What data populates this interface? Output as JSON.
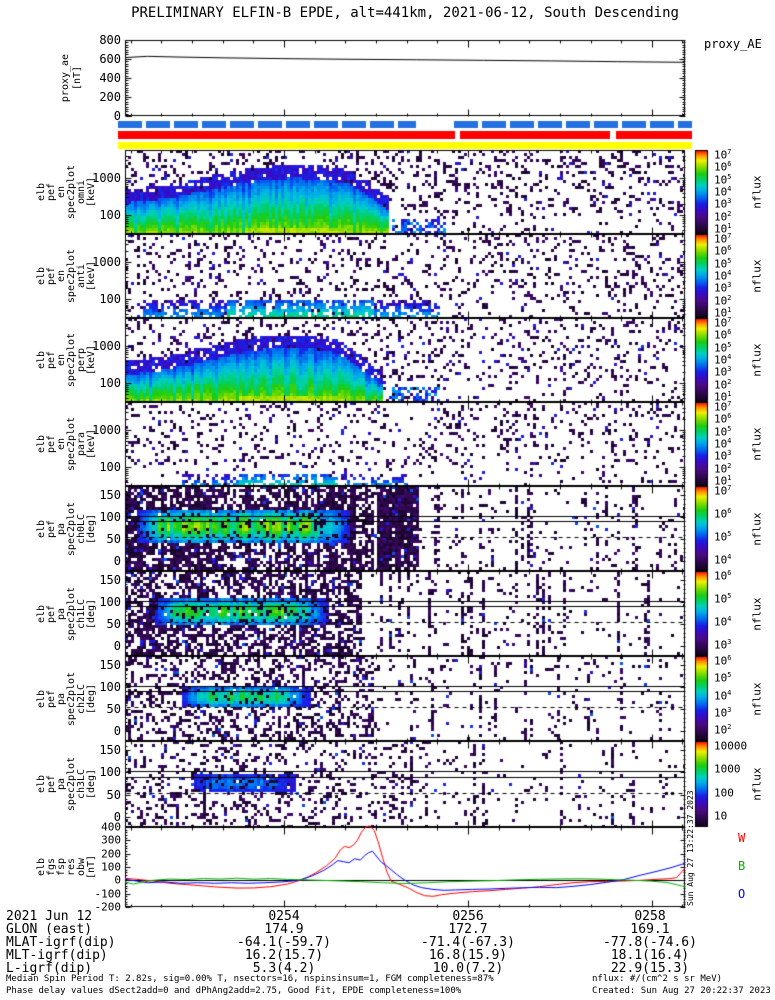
{
  "title": "PRELIMINARY ELFIN-B EPDE, alt=441km, 2021-06-12, South Descending",
  "created_stamp_vertical": "Sun Aug 27 13:22:37 2023",
  "footer": {
    "left_lines": [
      "Median Spin Period T: 2.82s, sig=0.00% T, nsectors=16, nspinsinsum=1, FGM completeness=87%",
      "Phase delay values dSect2add=0 and dPhAng2add=2.75, Good Fit, EPDE completeness=100%"
    ],
    "right_lines": [
      "nflux: #/(cm^2 s sr MeV)",
      "Created: Sun Aug 27 20:22:37 2023"
    ]
  },
  "annotations": {
    "rows": [
      {
        "label": "2021 Jun 12",
        "values": [
          "0254",
          "0256",
          "0258"
        ]
      },
      {
        "label": "GLON (east)",
        "values": [
          "174.9",
          "172.7",
          "169.1"
        ]
      },
      {
        "label": "MLAT-igrf(dip)",
        "values": [
          "-64.1(-59.7)",
          "-71.4(-67.3)",
          "-77.8(-74.6)"
        ]
      },
      {
        "label": "MLT-igrf(dip)",
        "values": [
          "16.2(15.7)",
          "16.8(15.9)",
          "18.1(16.4)"
        ]
      },
      {
        "label": "L-igrf(dip)",
        "values": [
          "5.3(4.2)",
          "10.0(7.2)",
          "22.9(15.3)"
        ]
      }
    ]
  },
  "chart_data": {
    "type": "multi-panel-spectrogram",
    "colorbar_label": "nflux",
    "time_axis": {
      "major_labels": [
        "0254",
        "0256",
        "0258"
      ]
    },
    "proxy_panel": {
      "left_label_lines": [
        "proxy_ae",
        "[nT]"
      ],
      "right_label": "proxy_AE",
      "yticks": [
        0,
        200,
        400,
        600,
        800
      ],
      "ylim": [
        0,
        800
      ],
      "line_points": [
        [
          0,
          615
        ],
        [
          0.04,
          628
        ],
        [
          0.1,
          620
        ],
        [
          0.18,
          612
        ],
        [
          0.28,
          604
        ],
        [
          0.4,
          597
        ],
        [
          0.52,
          592
        ],
        [
          0.64,
          586
        ],
        [
          0.76,
          580
        ],
        [
          0.88,
          572
        ],
        [
          1,
          565
        ]
      ]
    },
    "availability_strips": [
      {
        "name": "blue-strip",
        "color": "#2470e0",
        "style": "dashed"
      },
      {
        "name": "red-strip",
        "color": "#ff0000",
        "style": "solid"
      },
      {
        "name": "yellow-strip",
        "color": "#ffff00",
        "style": "solid"
      }
    ],
    "energy_panels": [
      {
        "name": "omni",
        "label_lines": [
          "elb",
          "pef",
          "en",
          "spec2plot",
          "omni",
          "[keV]"
        ],
        "ytick_labels": [
          "1000",
          "100"
        ],
        "colorbar_ticks": [
          "10^7",
          "10^6",
          "10^5",
          "10^4",
          "10^3",
          "10^2",
          "10^1"
        ],
        "seed": 11,
        "features": {
          "noise": 0.2,
          "blob": {
            "base": 0.66,
            "amp": 0.34,
            "cx": 0.3,
            "sx": 0.15,
            "xEnd": 0.47,
            "bendX": 0.4
          },
          "tail": {
            "x0": 0.475,
            "x1": 0.57,
            "top": 0.8,
            "p": 0.55
          }
        }
      },
      {
        "name": "anti",
        "label_lines": [
          "elb",
          "pef",
          "en",
          "spec2plot",
          "anti",
          "[keV]"
        ],
        "ytick_labels": [
          "1000",
          "100"
        ],
        "colorbar_ticks": [
          "10^7",
          "10^6",
          "10^5",
          "10^4",
          "10^3",
          "10^2",
          "10^1"
        ],
        "seed": 22,
        "features": {
          "noise": 0.17,
          "band": {
            "x0": 0.03,
            "x1": 0.56,
            "top": 0.76,
            "p": 0.55,
            "cx0": 0.18,
            "cx1": 0.44
          }
        }
      },
      {
        "name": "perp",
        "label_lines": [
          "elb",
          "pef",
          "en",
          "spec2plot",
          "perp",
          "[keV]"
        ],
        "ytick_labels": [
          "1000",
          "100"
        ],
        "colorbar_ticks": [
          "10^7",
          "10^6",
          "10^5",
          "10^4",
          "10^3",
          "10^2",
          "10^1"
        ],
        "seed": 33,
        "features": {
          "noise": 0.19,
          "blob": {
            "base": 0.7,
            "amp": 0.36,
            "cx": 0.29,
            "sx": 0.14,
            "xEnd": 0.46,
            "bendX": 0.38
          },
          "tail": {
            "x0": 0.47,
            "x1": 0.56,
            "top": 0.82,
            "p": 0.5
          }
        }
      },
      {
        "name": "para",
        "label_lines": [
          "elb",
          "pef",
          "en",
          "spec2plot",
          "para",
          "[keV]"
        ],
        "ytick_labels": [
          "1000",
          "100"
        ],
        "colorbar_ticks": [
          "10^7",
          "10^6",
          "10^5",
          "10^4",
          "10^3",
          "10^2",
          "10^1"
        ],
        "seed": 44,
        "features": {
          "noise": 0.15,
          "band": {
            "x0": 0.1,
            "x1": 0.5,
            "top": 0.84,
            "p": 0.4,
            "cx0": 0.2,
            "cx1": 0.38
          }
        }
      }
    ],
    "pitch_panels": [
      {
        "name": "ch0LC",
        "label_lines": [
          "elb",
          "pef",
          "pa",
          "spec2plot",
          "ch0LC",
          "[deg]"
        ],
        "yticks": [
          150,
          100,
          50,
          0
        ],
        "colorbar_ticks": [
          "10^7",
          "10^6",
          "10^5",
          "10^4"
        ],
        "seed": 55,
        "features": {
          "darkEnd": 0.44,
          "darkD": 0.85,
          "spCol": 0.15,
          "extra": [
            0.45,
            0.52
          ],
          "bandX": [
            0.02,
            0.4
          ],
          "bandC": 97,
          "bandS": 24,
          "bandA": 0.46
        },
        "lines": {
          "solid_deg": [
            103,
            90
          ],
          "dashed_deg": [
            55
          ]
        }
      },
      {
        "name": "ch1LC",
        "label_lines": [
          "elb",
          "pef",
          "pa",
          "spec2plot",
          "ch1LC",
          "[deg]"
        ],
        "yticks": [
          150,
          100,
          50,
          0
        ],
        "colorbar_ticks": [
          "10^6",
          "10^5",
          "10^4",
          "10^3"
        ],
        "seed": 66,
        "features": {
          "darkEnd": 0.42,
          "darkD": 0.7,
          "spCol": 0.12,
          "bandX": [
            0.05,
            0.36
          ],
          "bandC": 96,
          "bandS": 19,
          "bandA": 0.42
        },
        "lines": {
          "solid_deg": [
            103,
            90
          ],
          "dashed_deg": [
            55
          ]
        }
      },
      {
        "name": "ch2LC",
        "label_lines": [
          "elb",
          "pef",
          "pa",
          "spec2plot",
          "ch2LC",
          "[deg]"
        ],
        "yticks": [
          150,
          100,
          50,
          0
        ],
        "colorbar_ticks": [
          "10^6",
          "10^5",
          "10^4",
          "10^3",
          "10^2"
        ],
        "seed": 77,
        "features": {
          "darkEnd": 0.44,
          "darkD": 0.45,
          "spCol": 0.1,
          "bandX": [
            0.1,
            0.33
          ],
          "bandC": 95,
          "bandS": 15,
          "bandA": 0.38
        },
        "lines": {
          "solid_deg": [
            103,
            90
          ],
          "dashed_deg": [
            55
          ]
        }
      },
      {
        "name": "ch3LC",
        "label_lines": [
          "elb",
          "pef",
          "pa",
          "spec2plot",
          "ch3LC",
          "[deg]"
        ],
        "yticks": [
          150,
          100,
          50,
          0
        ],
        "colorbar_ticks": [
          "10000",
          "1000",
          "100",
          "10"
        ],
        "seed": 88,
        "features": {
          "darkEnd": 0.5,
          "darkD": 0.3,
          "spCol": 0.08,
          "bandX": [
            0.12,
            0.3
          ],
          "bandC": 95,
          "bandS": 12,
          "bandA": 0.15
        },
        "lines": {
          "solid_deg": [
            103,
            90
          ],
          "dashed_deg": [
            55
          ]
        }
      }
    ],
    "bottom_panel": {
      "label_lines": [
        "elb",
        "fgs",
        "fsp",
        "res",
        "obw",
        "[nT]"
      ],
      "yticks": [
        400,
        300,
        200,
        100,
        0,
        -100,
        -200
      ],
      "ylim": [
        -200,
        400
      ],
      "legend": [
        {
          "label": "W",
          "color": "#ff0000"
        },
        {
          "label": "B",
          "color": "#00b400"
        },
        {
          "label": "O",
          "color": "#0000ff"
        }
      ],
      "series": [
        {
          "name": "W",
          "color": "#ff0000",
          "points": [
            [
              0,
              15
            ],
            [
              0.02,
              8
            ],
            [
              0.05,
              -5
            ],
            [
              0.08,
              -22
            ],
            [
              0.11,
              -32
            ],
            [
              0.14,
              -42
            ],
            [
              0.17,
              -52
            ],
            [
              0.2,
              -58
            ],
            [
              0.23,
              -57
            ],
            [
              0.26,
              -48
            ],
            [
              0.29,
              -28
            ],
            [
              0.32,
              10
            ],
            [
              0.34,
              55
            ],
            [
              0.36,
              110
            ],
            [
              0.375,
              165
            ],
            [
              0.385,
              230
            ],
            [
              0.392,
              255
            ],
            [
              0.4,
              245
            ],
            [
              0.408,
              265
            ],
            [
              0.415,
              300
            ],
            [
              0.422,
              360
            ],
            [
              0.43,
              400
            ],
            [
              0.437,
              408
            ],
            [
              0.445,
              375
            ],
            [
              0.452,
              290
            ],
            [
              0.46,
              170
            ],
            [
              0.468,
              60
            ],
            [
              0.475,
              -5
            ],
            [
              0.49,
              -30
            ],
            [
              0.505,
              -55
            ],
            [
              0.52,
              -90
            ],
            [
              0.535,
              -115
            ],
            [
              0.55,
              -120
            ],
            [
              0.565,
              -108
            ],
            [
              0.58,
              -100
            ],
            [
              0.6,
              -92
            ],
            [
              0.62,
              -85
            ],
            [
              0.65,
              -78
            ],
            [
              0.68,
              -68
            ],
            [
              0.71,
              -58
            ],
            [
              0.74,
              -48
            ],
            [
              0.77,
              -32
            ],
            [
              0.8,
              -18
            ],
            [
              0.83,
              -10
            ],
            [
              0.86,
              -8
            ],
            [
              0.89,
              -5
            ],
            [
              0.92,
              0
            ],
            [
              0.95,
              8
            ],
            [
              0.97,
              12
            ],
            [
              0.985,
              20
            ],
            [
              1,
              92
            ]
          ]
        },
        {
          "name": "O",
          "color": "#0000ff",
          "points": [
            [
              0,
              8
            ],
            [
              0.02,
              -5
            ],
            [
              0.04,
              -18
            ],
            [
              0.07,
              -12
            ],
            [
              0.1,
              -22
            ],
            [
              0.13,
              -18
            ],
            [
              0.16,
              -22
            ],
            [
              0.19,
              -18
            ],
            [
              0.22,
              -22
            ],
            [
              0.25,
              -18
            ],
            [
              0.28,
              -12
            ],
            [
              0.31,
              0
            ],
            [
              0.335,
              35
            ],
            [
              0.355,
              75
            ],
            [
              0.37,
              115
            ],
            [
              0.38,
              148
            ],
            [
              0.39,
              140
            ],
            [
              0.4,
              132
            ],
            [
              0.41,
              162
            ],
            [
              0.42,
              152
            ],
            [
              0.428,
              185
            ],
            [
              0.435,
              208
            ],
            [
              0.442,
              218
            ],
            [
              0.45,
              175
            ],
            [
              0.458,
              135
            ],
            [
              0.465,
              115
            ],
            [
              0.475,
              80
            ],
            [
              0.485,
              45
            ],
            [
              0.5,
              0
            ],
            [
              0.515,
              -35
            ],
            [
              0.53,
              -55
            ],
            [
              0.55,
              -68
            ],
            [
              0.57,
              -75
            ],
            [
              0.59,
              -72
            ],
            [
              0.62,
              -68
            ],
            [
              0.65,
              -65
            ],
            [
              0.68,
              -60
            ],
            [
              0.71,
              -56
            ],
            [
              0.74,
              -52
            ],
            [
              0.77,
              -55
            ],
            [
              0.8,
              -45
            ],
            [
              0.83,
              -32
            ],
            [
              0.86,
              -15
            ],
            [
              0.89,
              5
            ],
            [
              0.92,
              38
            ],
            [
              0.95,
              68
            ],
            [
              0.975,
              95
            ],
            [
              1,
              128
            ]
          ]
        },
        {
          "name": "B",
          "color": "#00b400",
          "points": [
            [
              0,
              -12
            ],
            [
              0.015,
              -28
            ],
            [
              0.03,
              -15
            ],
            [
              0.05,
              0
            ],
            [
              0.08,
              10
            ],
            [
              0.11,
              6
            ],
            [
              0.14,
              14
            ],
            [
              0.17,
              10
            ],
            [
              0.2,
              16
            ],
            [
              0.23,
              9
            ],
            [
              0.26,
              14
            ],
            [
              0.29,
              7
            ],
            [
              0.32,
              4
            ],
            [
              0.35,
              0
            ],
            [
              0.38,
              -4
            ],
            [
              0.42,
              -10
            ],
            [
              0.46,
              -18
            ],
            [
              0.5,
              -24
            ],
            [
              0.54,
              -18
            ],
            [
              0.58,
              -10
            ],
            [
              0.62,
              -6
            ],
            [
              0.66,
              -2
            ],
            [
              0.7,
              4
            ],
            [
              0.74,
              8
            ],
            [
              0.78,
              11
            ],
            [
              0.82,
              12
            ],
            [
              0.85,
              9
            ],
            [
              0.88,
              4
            ],
            [
              0.91,
              0
            ],
            [
              0.94,
              -6
            ],
            [
              0.97,
              -18
            ],
            [
              1,
              -48
            ]
          ]
        }
      ]
    }
  }
}
